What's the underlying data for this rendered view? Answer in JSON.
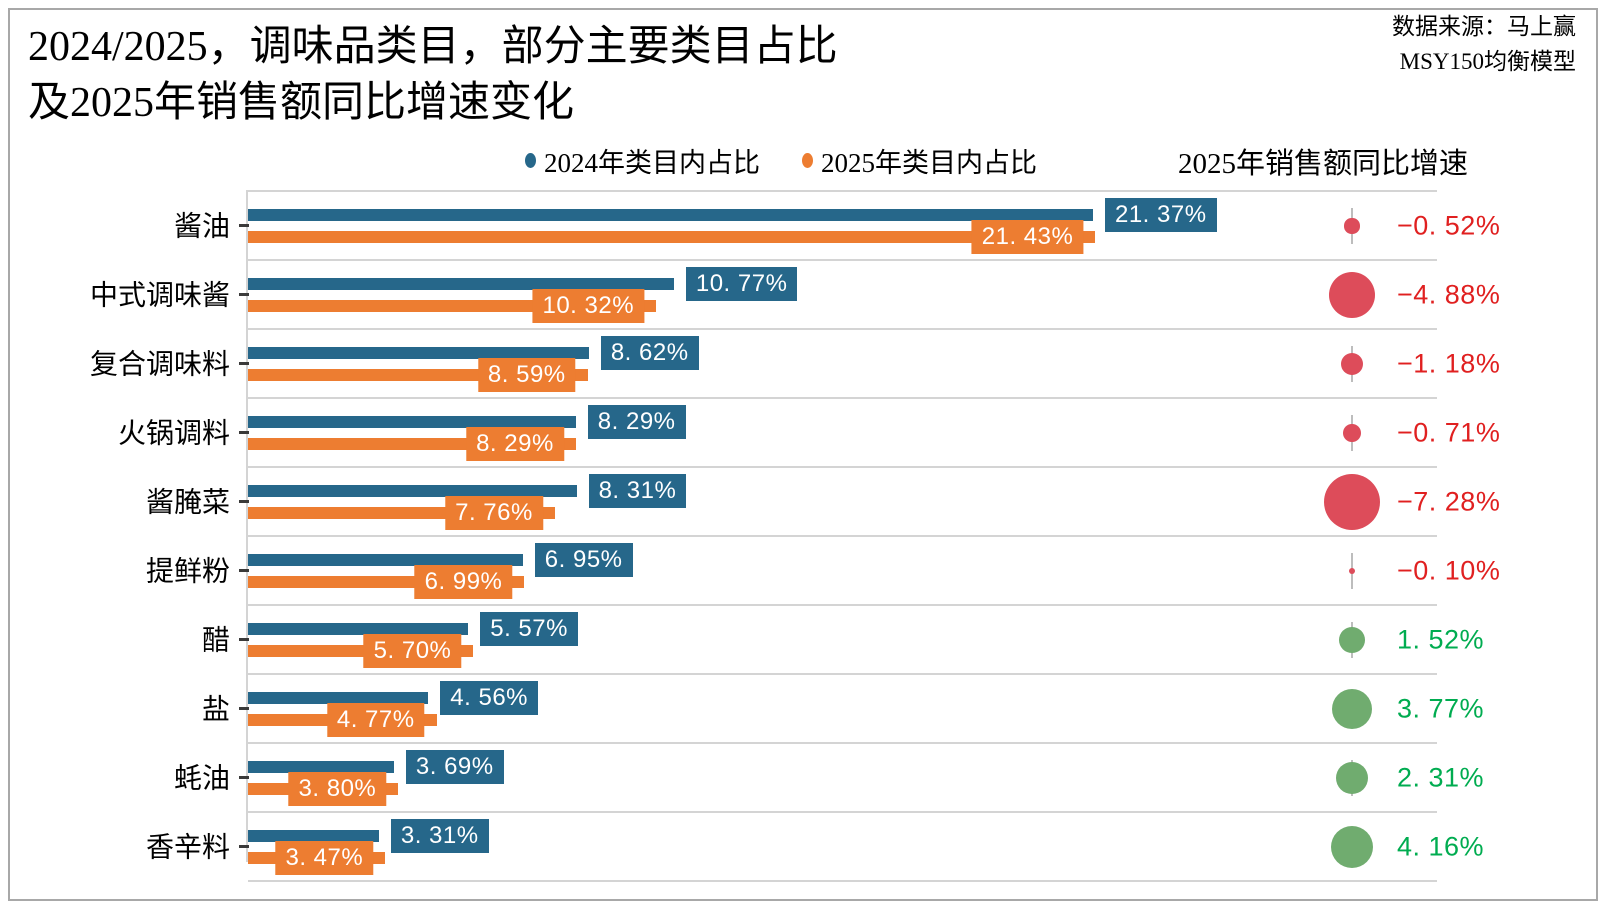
{
  "header": {
    "title_line1": "2024/2025，调味品类目，部分主要类目占比",
    "title_line2": "及2025年销售额同比增速变化",
    "source_line1": "数据来源：马上赢",
    "source_line2": "MSY150均衡模型"
  },
  "legend": {
    "item_2024": "2024年类目内占比",
    "item_2025": "2025年类目内占比",
    "growth_header": "2025年销售额同比增速"
  },
  "colors": {
    "blue": "#26678A",
    "orange": "#ED7D31",
    "bubble_negative": "#DD4C5A",
    "bubble_positive": "#70AC6F",
    "text_negative": "#E02020",
    "text_positive": "#00AC50",
    "gridline": "#D4D4D4"
  },
  "chart_data": {
    "type": "bar",
    "orientation": "horizontal",
    "title": "2024/2025，调味品类目，部分主要类目占比及2025年销售额同比增速变化",
    "categories": [
      "酱油",
      "中式调味酱",
      "复合调味料",
      "火锅调料",
      "酱腌菜",
      "提鲜粉",
      "醋",
      "盐",
      "蚝油",
      "香辛料"
    ],
    "series": [
      {
        "name": "2024年类目内占比",
        "color": "#26678A",
        "values": [
          21.37,
          10.77,
          8.62,
          8.29,
          8.31,
          6.95,
          5.57,
          4.56,
          3.69,
          3.31
        ]
      },
      {
        "name": "2025年类目内占比",
        "color": "#ED7D31",
        "values": [
          21.43,
          10.32,
          8.59,
          8.29,
          7.76,
          6.99,
          5.7,
          4.77,
          3.8,
          3.47
        ]
      }
    ],
    "growth": {
      "name": "2025年销售额同比增速",
      "values": [
        -0.52,
        -4.88,
        -1.18,
        -0.71,
        -7.28,
        -0.1,
        1.52,
        3.77,
        2.31,
        4.16
      ],
      "labels": [
        "−0.52%",
        "−4.88%",
        "−1.18%",
        "−0.71%",
        "−7.28%",
        "−0.10%",
        "1.52%",
        "3.77%",
        "2.31%",
        "4.16%"
      ]
    },
    "value_suffix": "%",
    "xlim": [
      0,
      30
    ],
    "grid": "row-separators",
    "legend_position": "top"
  }
}
